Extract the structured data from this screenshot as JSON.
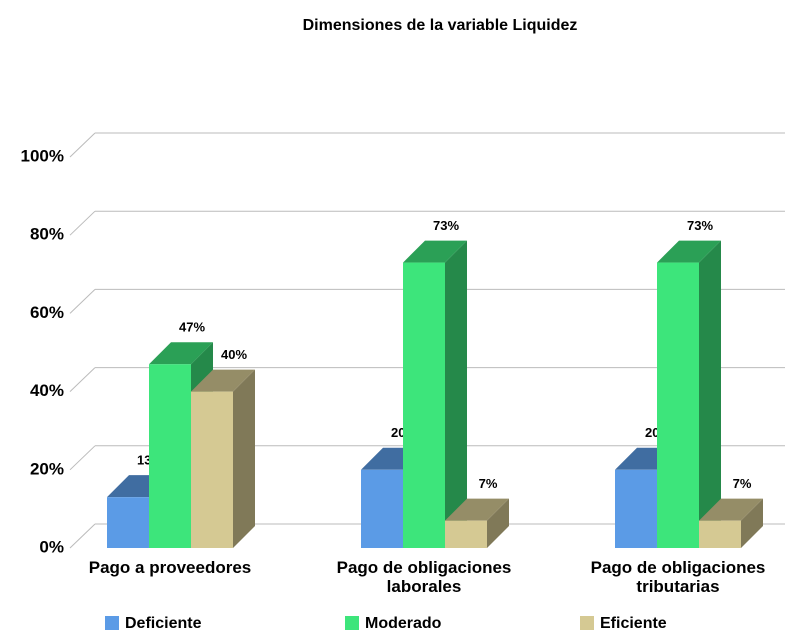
{
  "chart_data": {
    "type": "bar3d",
    "title": "Dimensiones de la variable Liquidez",
    "categories": [
      "Pago a proveedores",
      "Pago de obligaciones laborales",
      "Pago de obligaciones tributarias"
    ],
    "series": [
      {
        "name": "Deficiente",
        "color": "#5b9be6",
        "values": [
          13,
          20,
          20
        ],
        "value_labels": [
          "13%",
          "20%",
          "20%"
        ]
      },
      {
        "name": "Moderado",
        "color": "#3de57b",
        "values": [
          47,
          73,
          73
        ],
        "value_labels": [
          "47%",
          "73%",
          "73%"
        ]
      },
      {
        "name": "Eficiente",
        "color": "#d5c993",
        "values": [
          40,
          7,
          7
        ],
        "value_labels": [
          "40%",
          "7%",
          "7%"
        ]
      }
    ],
    "ylim": [
      0,
      100
    ],
    "yticks": [
      {
        "value": 0,
        "label": "0%"
      },
      {
        "value": 20,
        "label": "20%"
      },
      {
        "value": 40,
        "label": "40%"
      },
      {
        "value": 60,
        "label": "60%"
      },
      {
        "value": 80,
        "label": "80%"
      },
      {
        "value": 100,
        "label": "100%"
      }
    ],
    "grid": true,
    "legend": "bottom"
  }
}
